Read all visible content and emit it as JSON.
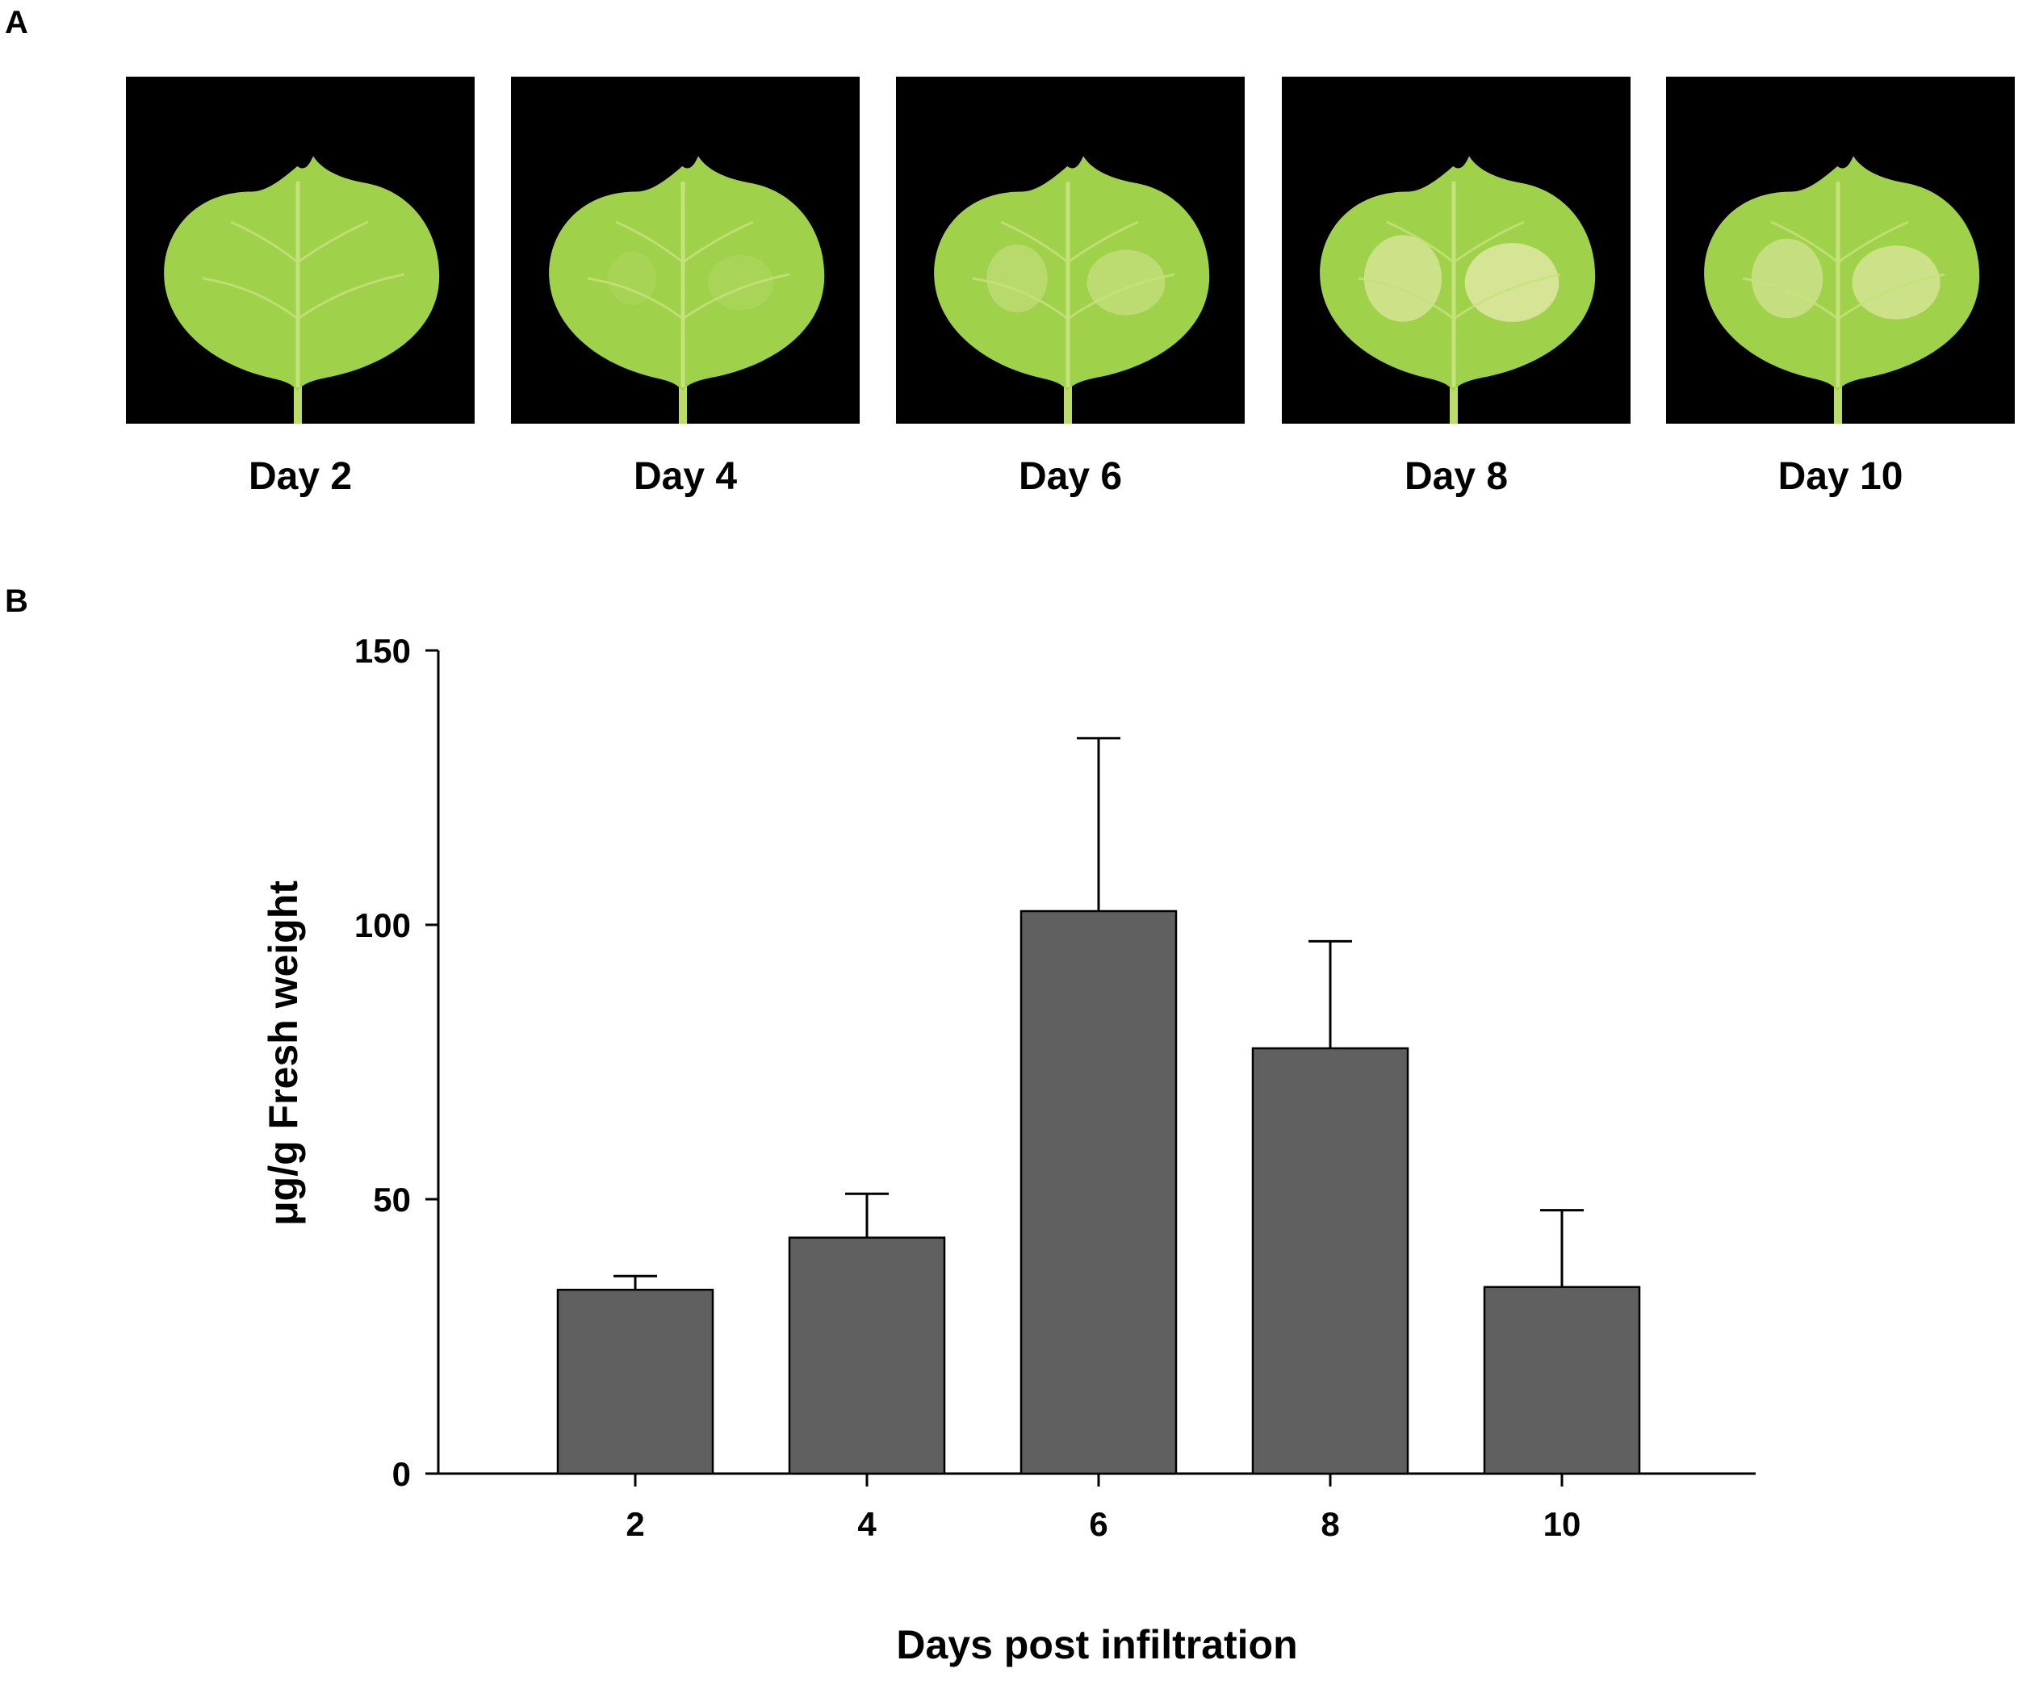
{
  "panels": {
    "a": "A",
    "b": "B"
  },
  "leaves": [
    {
      "caption": "Day 2",
      "yellowing": 0.0
    },
    {
      "caption": "Day 4",
      "yellowing": 0.15
    },
    {
      "caption": "Day 6",
      "yellowing": 0.45
    },
    {
      "caption": "Day 8",
      "yellowing": 0.85
    },
    {
      "caption": "Day 10",
      "yellowing": 0.7
    }
  ],
  "colors": {
    "bar_fill": "#606060",
    "leaf_green": "#9fd14a",
    "leaf_yellow": "#dfe8a2",
    "vein": "#c6e27a",
    "photo_bg": "#000000"
  },
  "chart_data": {
    "type": "bar",
    "categories": [
      "2",
      "4",
      "6",
      "8",
      "10"
    ],
    "values": [
      33.5,
      43,
      102.5,
      77.5,
      34
    ],
    "errors": [
      2.5,
      8,
      31.5,
      19.5,
      14
    ],
    "xlabel": "Days post infiltration",
    "ylabel": "μg/g Fresh weight",
    "ylim": [
      0,
      150
    ],
    "yticks": [
      0,
      50,
      100,
      150
    ],
    "grid": false,
    "error_bars": "upper"
  }
}
